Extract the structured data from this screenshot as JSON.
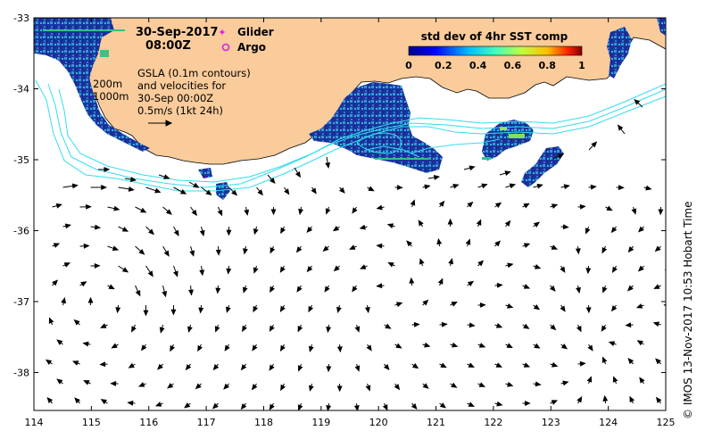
{
  "map": {
    "date": "30-Sep-2017",
    "time": "08:00Z",
    "legend": {
      "glider": "Glider",
      "argo": "Argo"
    },
    "gsla_lines": [
      "GSLA (0.1m contours)",
      "and velocities for",
      "30-Sep 00:00Z",
      "0.5m/s (1kt 24h)"
    ],
    "isobaths": [
      "200m",
      "1000m"
    ],
    "colorbar": {
      "title": "std dev of 4hr SST comp",
      "ticks": [
        "0",
        "0.2",
        "0.4",
        "0.6",
        "0.8",
        "1"
      ]
    },
    "x_ticks": [
      "114",
      "115",
      "116",
      "117",
      "118",
      "119",
      "120",
      "121",
      "122",
      "123",
      "124",
      "125"
    ],
    "y_ticks": [
      "-33",
      "-34",
      "-35",
      "-36",
      "-37",
      "-38"
    ],
    "credit": "© IMOS 13-Nov-2017 10:53 Hobart Time",
    "colors": {
      "land": "#FACB9B",
      "sst_high": "#1C33A0",
      "sst_mid": "#2E9CD0",
      "contour": "#33DDEE",
      "arrow": "#000000"
    }
  }
}
